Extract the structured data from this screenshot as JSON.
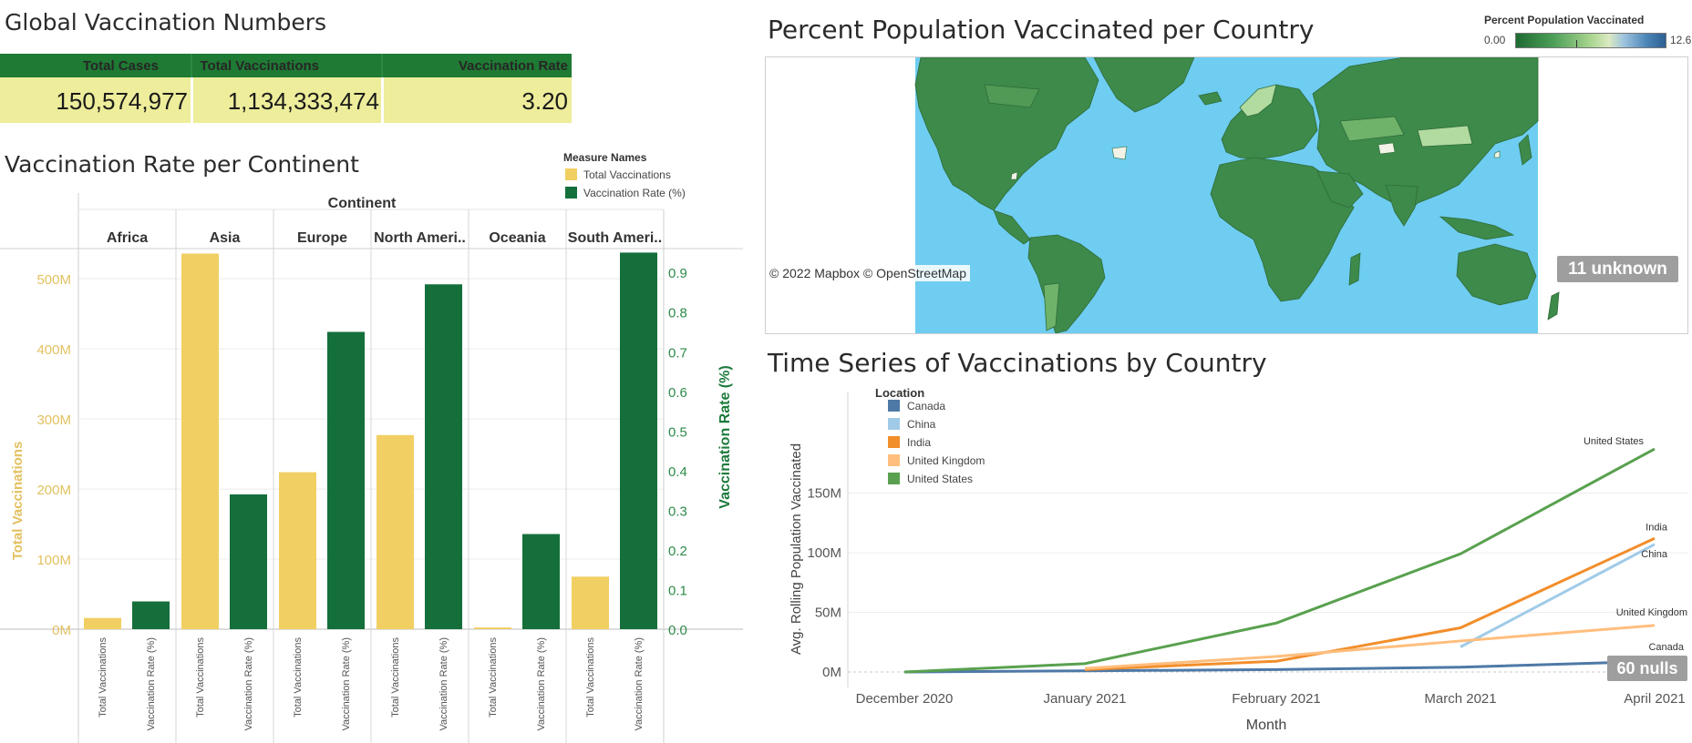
{
  "kpi": {
    "title": "Global Vaccination Numbers",
    "headers": [
      "Total Cases",
      "Total Vaccinations",
      "Vaccination Rate"
    ],
    "values": [
      "150,574,977",
      "1,134,333,474",
      "3.20"
    ]
  },
  "continent_chart": {
    "title": "Vaccination Rate per Continent",
    "legend_title": "Measure Names",
    "legend": [
      "Total Vaccinations",
      "Vaccination Rate (%)"
    ],
    "header": "Continent",
    "left_axis_label": "Total Vaccinations",
    "right_axis_label": "Vaccination Rate (%)",
    "left_ticks": [
      "0M",
      "100M",
      "200M",
      "300M",
      "400M",
      "500M"
    ],
    "right_ticks": [
      "0.0",
      "0.1",
      "0.2",
      "0.3",
      "0.4",
      "0.5",
      "0.6",
      "0.7",
      "0.8",
      "0.9"
    ]
  },
  "map": {
    "title": "Percent Population Vaccinated per Country",
    "legend_title": "Percent Population Vaccinated",
    "legend_min": "0.00",
    "legend_max": "12.61",
    "attribution": "© 2022 Mapbox © OpenStreetMap",
    "unknown_badge": "11 unknown"
  },
  "timeseries": {
    "title": "Time Series of Vaccinations by Country",
    "legend_title": "Location",
    "ylabel": "Avg. Rolling Population Vaccinated",
    "xlabel": "Month",
    "y_ticks": [
      "0M",
      "50M",
      "100M",
      "150M"
    ],
    "x_ticks": [
      "December 2020",
      "January 2021",
      "February 2021",
      "March 2021",
      "April 2021"
    ],
    "nulls_badge": "60 nulls"
  },
  "colors": {
    "gold": "#f2cf63",
    "green": "#156f3b",
    "kpi_header": "#1f7a33",
    "kpi_body": "#eded9b",
    "ocean": "#6ecdf0",
    "land": "#3d8a4a"
  },
  "chart_data": [
    {
      "type": "bar",
      "categories": [
        "Africa",
        "Asia",
        "Europe",
        "North Ameri..",
        "Oceania",
        "South Ameri.."
      ],
      "series": [
        {
          "name": "Total Vaccinations",
          "axis": "left",
          "color": "#f2cf63",
          "values": [
            16000000,
            536000000,
            224000000,
            277000000,
            2500000,
            75000000
          ]
        },
        {
          "name": "Vaccination Rate (%)",
          "axis": "right",
          "color": "#156f3b",
          "values": [
            0.07,
            0.34,
            0.75,
            0.87,
            0.24,
            0.95
          ]
        }
      ],
      "ylim_left": [
        0,
        560000000
      ],
      "ylim_right": [
        0,
        0.99
      ],
      "xlabel": "Continent",
      "ylabel_left": "Total Vaccinations",
      "ylabel_right": "Vaccination Rate (%)",
      "grid": true
    },
    {
      "type": "line",
      "title": "Time Series of Vaccinations by Country",
      "x": [
        "December 2020",
        "January 2021",
        "February 2021",
        "March 2021",
        "April 2021"
      ],
      "series": [
        {
          "name": "Canada",
          "color": "#4e79a7",
          "values": [
            0,
            1000000,
            2000000,
            4000000,
            9000000
          ]
        },
        {
          "name": "China",
          "color": "#a0cbe8",
          "values": [
            null,
            null,
            null,
            21000000,
            107000000
          ]
        },
        {
          "name": "India",
          "color": "#f28e2b",
          "values": [
            null,
            2000000,
            9000000,
            37000000,
            112000000
          ]
        },
        {
          "name": "United Kingdom",
          "color": "#ffbe7d",
          "values": [
            null,
            3000000,
            13000000,
            26000000,
            39000000
          ]
        },
        {
          "name": "United States",
          "color": "#59a14f",
          "values": [
            0,
            7000000,
            41000000,
            99000000,
            187000000
          ]
        }
      ],
      "ylim": [
        0,
        200000000
      ],
      "xlabel": "Month",
      "ylabel": "Avg. Rolling Population Vaccinated",
      "grid": true
    }
  ]
}
